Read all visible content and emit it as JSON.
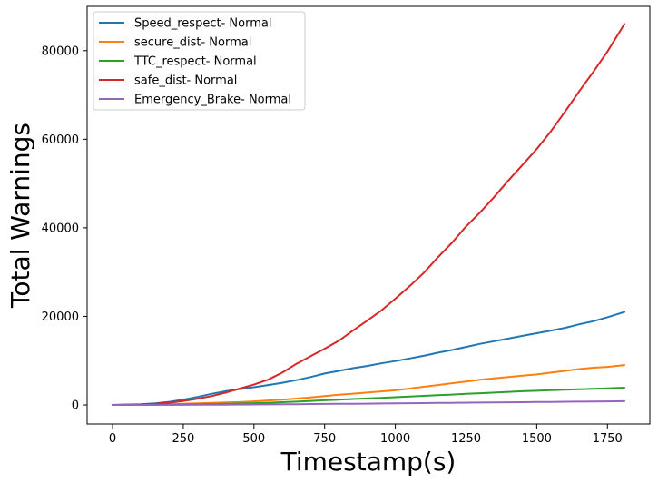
{
  "chart_data": {
    "type": "line",
    "title": "",
    "xlabel": "Timestamp(s)",
    "ylabel": "Total Warnings",
    "xlim": [
      -90,
      1900
    ],
    "ylim": [
      -4300,
      90000
    ],
    "xticks": [
      0,
      250,
      500,
      750,
      1000,
      1250,
      1500,
      1750
    ],
    "yticks": [
      0,
      20000,
      40000,
      60000,
      80000
    ],
    "grid": false,
    "legend_position": "top-left",
    "x": [
      0,
      100,
      150,
      200,
      250,
      300,
      350,
      400,
      450,
      500,
      550,
      600,
      650,
      700,
      750,
      800,
      850,
      900,
      950,
      1000,
      1050,
      1100,
      1150,
      1200,
      1250,
      1300,
      1350,
      1400,
      1450,
      1500,
      1550,
      1600,
      1650,
      1700,
      1750,
      1810
    ],
    "series": [
      {
        "name": "Speed_respect- Normal",
        "color": "#1f77b4",
        "values": [
          0,
          150,
          350,
          700,
          1200,
          1800,
          2500,
          3100,
          3600,
          4000,
          4500,
          5000,
          5600,
          6300,
          7100,
          7700,
          8300,
          8800,
          9400,
          9900,
          10500,
          11100,
          11800,
          12400,
          13100,
          13800,
          14400,
          15000,
          15600,
          16200,
          16800,
          17400,
          18200,
          18900,
          19800,
          21000
        ]
      },
      {
        "name": "secure_dist- Normal",
        "color": "#ff7f0e",
        "values": [
          0,
          30,
          80,
          150,
          250,
          350,
          450,
          550,
          650,
          800,
          1000,
          1200,
          1450,
          1700,
          2000,
          2300,
          2550,
          2800,
          3050,
          3300,
          3700,
          4100,
          4500,
          4900,
          5300,
          5700,
          6000,
          6300,
          6600,
          6900,
          7300,
          7700,
          8100,
          8400,
          8600,
          9000
        ]
      },
      {
        "name": "TTC_respect- Normal",
        "color": "#2ca02c",
        "values": [
          0,
          10,
          30,
          60,
          100,
          150,
          200,
          260,
          330,
          400,
          500,
          620,
          750,
          900,
          1050,
          1200,
          1330,
          1460,
          1600,
          1750,
          1900,
          2050,
          2200,
          2350,
          2500,
          2650,
          2800,
          2950,
          3100,
          3200,
          3350,
          3450,
          3550,
          3650,
          3750,
          3900
        ]
      },
      {
        "name": "safe_dist- Normal",
        "color": "#d62728",
        "values": [
          0,
          100,
          250,
          500,
          900,
          1400,
          2000,
          2800,
          3700,
          4600,
          5700,
          7300,
          9300,
          11000,
          12700,
          14500,
          16800,
          19000,
          21300,
          24000,
          26800,
          29800,
          33300,
          36600,
          40300,
          43500,
          47000,
          50700,
          54200,
          57800,
          61800,
          66200,
          70800,
          75200,
          79800,
          86000
        ]
      },
      {
        "name": "Emergency_Brake- Normal",
        "color": "#9467bd",
        "values": [
          0,
          5,
          10,
          20,
          30,
          40,
          55,
          70,
          90,
          110,
          130,
          150,
          175,
          200,
          225,
          250,
          275,
          300,
          330,
          360,
          390,
          420,
          450,
          480,
          510,
          540,
          570,
          600,
          630,
          660,
          690,
          720,
          750,
          780,
          810,
          850
        ]
      }
    ]
  }
}
